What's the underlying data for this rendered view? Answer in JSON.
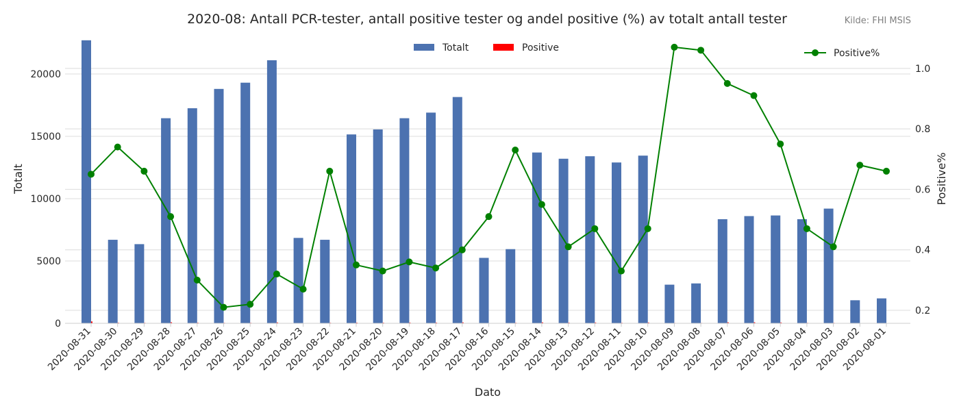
{
  "chart_data": {
    "type": "bar",
    "title": "2020-08: Antall PCR-tester, antall positive tester og andel positive (%) av totalt antall tester",
    "source": "Kilde: FHI MSIS",
    "xlabel": "Dato",
    "ylabel": "Totalt",
    "y2label": "Positive%",
    "ylim": [
      0,
      22800
    ],
    "y2lim": [
      0.157,
      1.097
    ],
    "yticks": [
      "0",
      "5000",
      "10000",
      "15000",
      "20000"
    ],
    "y2ticks": [
      "0.2",
      "0.4",
      "0.6",
      "0.8",
      "1.0"
    ],
    "grid": true,
    "categories": [
      "2020-08-31",
      "2020-08-30",
      "2020-08-29",
      "2020-08-28",
      "2020-08-27",
      "2020-08-26",
      "2020-08-25",
      "2020-08-24",
      "2020-08-23",
      "2020-08-22",
      "2020-08-21",
      "2020-08-20",
      "2020-08-19",
      "2020-08-18",
      "2020-08-17",
      "2020-08-16",
      "2020-08-15",
      "2020-08-14",
      "2020-08-13",
      "2020-08-12",
      "2020-08-11",
      "2020-08-10",
      "2020-08-09",
      "2020-08-08",
      "2020-08-07",
      "2020-08-06",
      "2020-08-05",
      "2020-08-04",
      "2020-08-03",
      "2020-08-02",
      "2020-08-01"
    ],
    "series": [
      {
        "name": "Totalt",
        "type": "bar",
        "axis": "left",
        "color": "#4c72b0",
        "values": [
          22700,
          6700,
          6350,
          16450,
          17250,
          18800,
          19300,
          21100,
          6850,
          6700,
          15150,
          15550,
          16450,
          16900,
          18150,
          5250,
          5950,
          13700,
          13200,
          13400,
          12900,
          13450,
          3100,
          3200,
          8350,
          8600,
          8650,
          8350,
          9200,
          1850,
          2000
        ]
      },
      {
        "name": "Positive",
        "type": "bar",
        "axis": "left",
        "color": "#ff0000",
        "values": [
          148,
          50,
          42,
          84,
          52,
          40,
          42,
          68,
          18,
          44,
          53,
          51,
          59,
          57,
          73,
          27,
          43,
          75,
          54,
          63,
          43,
          63,
          33,
          34,
          79,
          78,
          65,
          39,
          38,
          13,
          13
        ]
      },
      {
        "name": "Positive%",
        "type": "line",
        "axis": "right",
        "color": "#008000",
        "values": [
          0.65,
          0.74,
          0.66,
          0.51,
          0.3,
          0.21,
          0.22,
          0.32,
          0.27,
          0.66,
          0.35,
          0.33,
          0.36,
          0.34,
          0.4,
          0.51,
          0.73,
          0.55,
          0.41,
          0.47,
          0.33,
          0.47,
          1.07,
          1.06,
          0.95,
          0.91,
          0.75,
          0.47,
          0.41,
          0.68,
          0.66
        ]
      }
    ],
    "legend": {
      "bars": "top-center",
      "line": "top-right"
    }
  }
}
